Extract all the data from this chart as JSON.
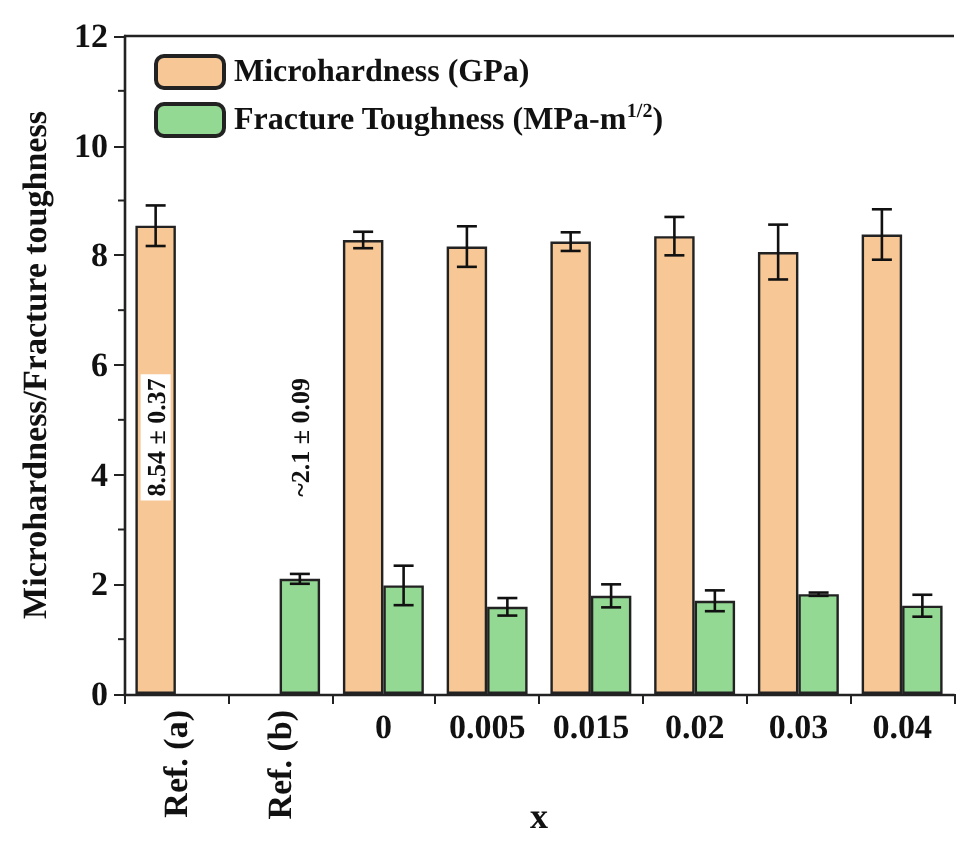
{
  "chart_data": {
    "type": "bar",
    "xlabel": "x",
    "ylabel": "Microhardness/Fracture toughness",
    "categories": [
      "Ref. (a)",
      "Ref. (b)",
      "0",
      "0.005",
      "0.015",
      "0.02",
      "0.03",
      "0.04"
    ],
    "series": [
      {
        "name": "Microhardness (GPa)",
        "color": "#f7c796",
        "values": [
          8.54,
          null,
          8.28,
          8.16,
          8.25,
          8.35,
          8.06,
          8.38
        ],
        "errors": [
          0.37,
          null,
          0.15,
          0.37,
          0.17,
          0.35,
          0.5,
          0.46
        ]
      },
      {
        "name": "Fracture Toughness (MPa-m$^{1/2}$)",
        "color": "#93d893",
        "values": [
          null,
          2.1,
          1.98,
          1.59,
          1.79,
          1.7,
          1.82,
          1.61
        ],
        "errors": [
          null,
          0.09,
          0.36,
          0.16,
          0.21,
          0.19,
          0.03,
          0.2
        ]
      }
    ],
    "ylim": [
      0,
      12
    ],
    "yticks": [
      0,
      2,
      4,
      6,
      8,
      10,
      12
    ],
    "grid": false,
    "legend": "top left",
    "annotations": [
      "8.54 ± 0.37",
      "~2.1 ± 0.09"
    ]
  }
}
